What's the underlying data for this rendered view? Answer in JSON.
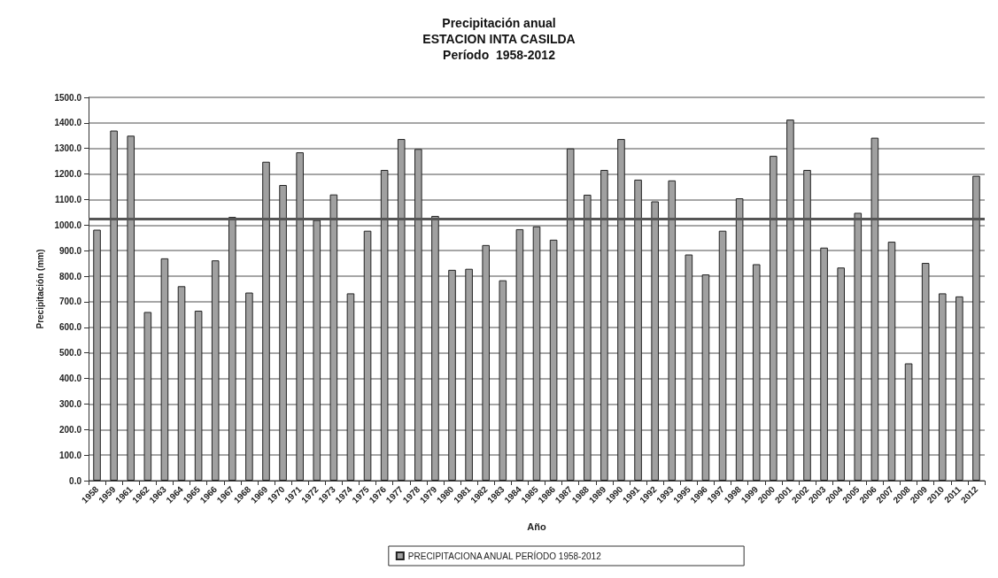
{
  "chart_data": {
    "type": "bar",
    "title": "Precipitación anual\nESTACION INTA CASILDA\nPeríodo  1958-2012",
    "xlabel": "Año",
    "ylabel": "Precipitación (mm)",
    "categories": [
      "1958",
      "1959",
      "1961",
      "1962",
      "1963",
      "1964",
      "1965",
      "1966",
      "1967",
      "1968",
      "1969",
      "1970",
      "1971",
      "1972",
      "1973",
      "1974",
      "1975",
      "1976",
      "1977",
      "1978",
      "1979",
      "1980",
      "1981",
      "1982",
      "1983",
      "1984",
      "1985",
      "1986",
      "1987",
      "1988",
      "1989",
      "1990",
      "1991",
      "1992",
      "1993",
      "1995",
      "1996",
      "1997",
      "1998",
      "1999",
      "2000",
      "2001",
      "2002",
      "2003",
      "2004",
      "2005",
      "2006",
      "2007",
      "2008",
      "2009",
      "2010",
      "2011",
      "2012"
    ],
    "series": [
      {
        "name": "PRECIPITACIONA ANUAL PERÍODO 1958-2012",
        "color": "#a0a0a0",
        "values": [
          982,
          1370,
          1350,
          660,
          870,
          761,
          665,
          862,
          1032,
          736,
          1248,
          1157,
          1285,
          1020,
          1120,
          733,
          978,
          1216,
          1337,
          1298,
          1036,
          825,
          829,
          922,
          784,
          984,
          995,
          943,
          1300,
          1119,
          1216,
          1337,
          1178,
          1093,
          1175,
          885,
          807,
          978,
          1105,
          847,
          1271,
          1413,
          1216,
          912,
          834,
          1048,
          1342,
          935,
          459,
          852,
          733,
          721,
          1193
        ]
      }
    ],
    "ylim": [
      0,
      1500
    ],
    "yticks": [
      {
        "value": 0,
        "label": "0.0"
      },
      {
        "value": 100,
        "label": "100.0"
      },
      {
        "value": 200,
        "label": "200.0"
      },
      {
        "value": 300,
        "label": "300.0"
      },
      {
        "value": 400,
        "label": "400.0"
      },
      {
        "value": 500,
        "label": "500.0"
      },
      {
        "value": 600,
        "label": "600.0"
      },
      {
        "value": 700,
        "label": "700.0"
      },
      {
        "value": 800,
        "label": "800.0"
      },
      {
        "value": 900,
        "label": "900.0"
      },
      {
        "value": 1000,
        "label": "1000.0"
      },
      {
        "value": 1100,
        "label": "1100.0"
      },
      {
        "value": 1200,
        "label": "1200.0"
      },
      {
        "value": 1300,
        "label": "1300.0"
      },
      {
        "value": 1400,
        "label": "1400.0"
      },
      {
        "value": 1500,
        "label": "1500.0"
      }
    ],
    "ref_lines": [
      {
        "axis": "y",
        "value": 1025,
        "color": "#555555",
        "line_style": "solid"
      }
    ],
    "grid": "y",
    "legend": "bottom"
  }
}
